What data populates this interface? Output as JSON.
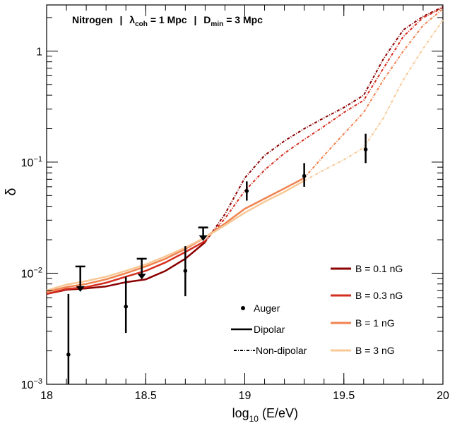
{
  "chart_data": {
    "type": "line",
    "title": {
      "element": "Nitrogen",
      "lambda_sym": "λ",
      "lambda_sub": "coh",
      "lambda_val": "= 1 Mpc",
      "d_sym": "D",
      "d_sub": "min",
      "d_val": "= 3 Mpc",
      "sep": "|"
    },
    "xlabel": {
      "main": "log",
      "sub": "10",
      "rest": " (E/eV)"
    },
    "ylabel": "δ",
    "x_scale": "linear",
    "y_scale": "log",
    "xlim": [
      18,
      20
    ],
    "ylim": [
      0.001,
      2.6
    ],
    "x_ticks": [
      {
        "v": 18,
        "label": "18"
      },
      {
        "v": 18.5,
        "label": "18.5"
      },
      {
        "v": 19,
        "label": "19"
      },
      {
        "v": 19.5,
        "label": "19.5"
      },
      {
        "v": 20,
        "label": "20"
      }
    ],
    "y_ticks": [
      {
        "v": 0.001,
        "base": "10",
        "exp": "−3"
      },
      {
        "v": 0.01,
        "base": "10",
        "exp": "−2"
      },
      {
        "v": 0.1,
        "base": "10",
        "exp": "−1"
      },
      {
        "v": 1,
        "base": "1",
        "exp": ""
      }
    ],
    "series": [
      {
        "name": "B = 0.1 nG",
        "color": "#8b0000",
        "dipolar": [
          [
            18,
            0.0065
          ],
          [
            18.1,
            0.0071
          ],
          [
            18.2,
            0.0073
          ],
          [
            18.3,
            0.0076
          ],
          [
            18.4,
            0.0083
          ],
          [
            18.5,
            0.0088
          ],
          [
            18.6,
            0.0105
          ],
          [
            18.7,
            0.0135
          ],
          [
            18.8,
            0.019
          ]
        ],
        "nondipolar": [
          [
            18.8,
            0.019
          ],
          [
            18.9,
            0.034
          ],
          [
            19.0,
            0.072
          ],
          [
            19.1,
            0.115
          ],
          [
            19.2,
            0.155
          ],
          [
            19.3,
            0.2
          ],
          [
            19.4,
            0.25
          ],
          [
            19.5,
            0.31
          ],
          [
            19.6,
            0.4
          ],
          [
            19.7,
            0.85
          ],
          [
            19.8,
            1.55
          ],
          [
            19.9,
            2.05
          ],
          [
            20,
            2.5
          ]
        ]
      },
      {
        "name": "B = 0.3 nG",
        "color": "#d42e1e",
        "dipolar": [
          [
            18,
            0.0065
          ],
          [
            18.1,
            0.0072
          ],
          [
            18.2,
            0.0075
          ],
          [
            18.3,
            0.0082
          ],
          [
            18.4,
            0.0093
          ],
          [
            18.5,
            0.0105
          ],
          [
            18.6,
            0.0125
          ],
          [
            18.7,
            0.0155
          ],
          [
            18.8,
            0.0195
          ]
        ],
        "nondipolar": [
          [
            18.8,
            0.0195
          ],
          [
            18.9,
            0.031
          ],
          [
            19.0,
            0.055
          ],
          [
            19.1,
            0.085
          ],
          [
            19.2,
            0.12
          ],
          [
            19.3,
            0.16
          ],
          [
            19.4,
            0.21
          ],
          [
            19.5,
            0.28
          ],
          [
            19.6,
            0.36
          ],
          [
            19.7,
            0.7
          ],
          [
            19.8,
            1.35
          ],
          [
            19.9,
            2.0
          ],
          [
            20,
            2.45
          ]
        ]
      },
      {
        "name": "B = 1 nG",
        "color": "#f0824e",
        "dipolar": [
          [
            18,
            0.0068
          ],
          [
            18.1,
            0.0075
          ],
          [
            18.2,
            0.008
          ],
          [
            18.3,
            0.0088
          ],
          [
            18.4,
            0.01
          ],
          [
            18.5,
            0.0115
          ],
          [
            18.6,
            0.0135
          ],
          [
            18.7,
            0.0165
          ],
          [
            18.8,
            0.021
          ],
          [
            18.9,
            0.028
          ],
          [
            19.0,
            0.038
          ],
          [
            19.1,
            0.047
          ],
          [
            19.2,
            0.058
          ],
          [
            19.3,
            0.072
          ]
        ],
        "nondipolar": [
          [
            19.3,
            0.072
          ],
          [
            19.4,
            0.115
          ],
          [
            19.5,
            0.18
          ],
          [
            19.6,
            0.28
          ],
          [
            19.7,
            0.55
          ],
          [
            19.8,
            1.0
          ],
          [
            19.9,
            1.7
          ],
          [
            20,
            2.4
          ]
        ]
      },
      {
        "name": "B = 3 nG",
        "color": "#f8c896",
        "dipolar": [
          [
            18,
            0.007
          ],
          [
            18.1,
            0.0079
          ],
          [
            18.2,
            0.0085
          ],
          [
            18.3,
            0.0093
          ],
          [
            18.4,
            0.0105
          ],
          [
            18.5,
            0.012
          ],
          [
            18.6,
            0.0142
          ],
          [
            18.7,
            0.017
          ],
          [
            18.8,
            0.021
          ],
          [
            18.9,
            0.027
          ],
          [
            19.0,
            0.035
          ],
          [
            19.1,
            0.044
          ],
          [
            19.2,
            0.054
          ],
          [
            19.3,
            0.068
          ]
        ],
        "nondipolar": [
          [
            19.3,
            0.068
          ],
          [
            19.4,
            0.085
          ],
          [
            19.5,
            0.105
          ],
          [
            19.6,
            0.135
          ],
          [
            19.7,
            0.25
          ],
          [
            19.8,
            0.55
          ],
          [
            19.9,
            1.05
          ],
          [
            20,
            1.9
          ]
        ]
      }
    ],
    "auger_points": [
      {
        "x": 18.11,
        "y": 0.00185,
        "ylo": 0.001,
        "yhi": 0.0065
      },
      {
        "x": 18.4,
        "y": 0.005,
        "ylo": 0.0029,
        "yhi": 0.0093
      },
      {
        "x": 18.7,
        "y": 0.0105,
        "ylo": 0.0062,
        "yhi": 0.0175
      },
      {
        "x": 19.01,
        "y": 0.055,
        "ylo": 0.045,
        "yhi": 0.067
      },
      {
        "x": 19.3,
        "y": 0.075,
        "ylo": 0.06,
        "yhi": 0.098
      },
      {
        "x": 19.61,
        "y": 0.13,
        "ylo": 0.098,
        "yhi": 0.18
      }
    ],
    "auger_upper_limits": [
      {
        "x": 18.17,
        "y": 0.0115,
        "arrow_to": 0.0068
      },
      {
        "x": 18.48,
        "y": 0.0135,
        "arrow_to": 0.0088
      },
      {
        "x": 18.79,
        "y": 0.0258,
        "arrow_to": 0.0195
      }
    ],
    "legend_markers": {
      "auger": "Auger",
      "dipolar": "Dipolar",
      "nondipolar": "Non-dipolar"
    },
    "legend_placement": "bottom-right",
    "grid": false
  }
}
